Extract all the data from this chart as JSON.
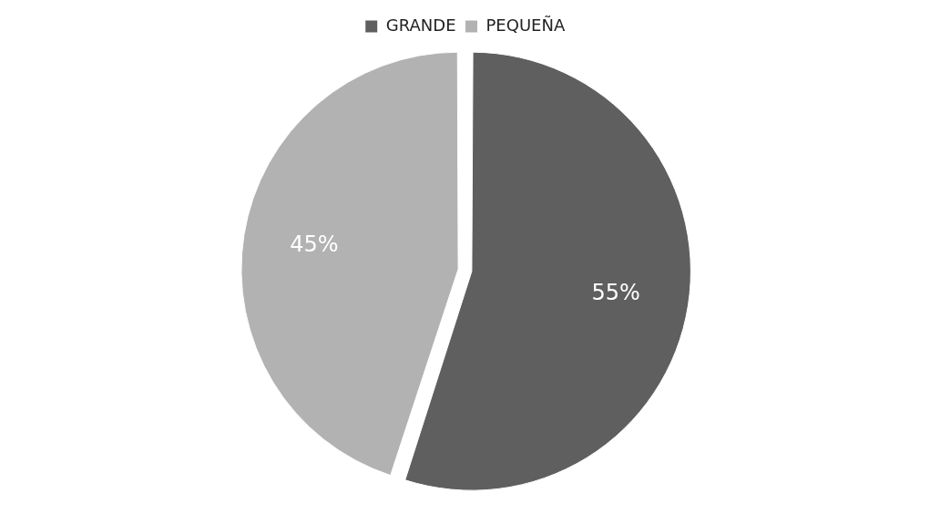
{
  "chart_data": {
    "type": "pie",
    "categories": [
      "GRANDE",
      "PEQUEÑA"
    ],
    "values": [
      55,
      45
    ],
    "colors": [
      "#5f5f5f",
      "#b2b2b2"
    ],
    "value_labels": [
      "55%",
      "45%"
    ],
    "legend": "top"
  }
}
